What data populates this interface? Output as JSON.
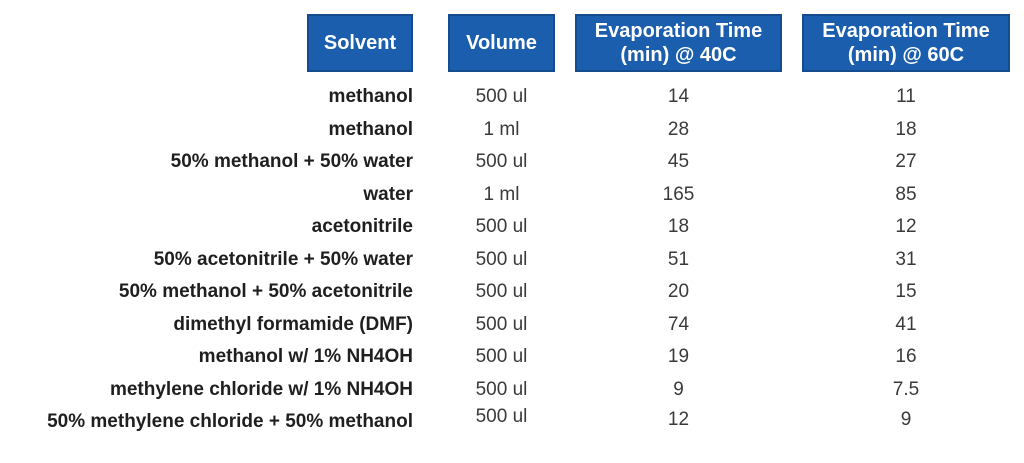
{
  "colors": {
    "header_bg": "#1A5EAD",
    "header_border": "#154C8D",
    "header_text": "#FFFFFF",
    "solvent_text": "#1F1F1F",
    "value_text": "#3A3A3A",
    "background": "#FFFFFF"
  },
  "table": {
    "headers": [
      {
        "id": "solvent",
        "label": "Solvent"
      },
      {
        "id": "volume",
        "label": "Volume"
      },
      {
        "id": "t40",
        "label": "Evaporation Time\n(min) @ 40C"
      },
      {
        "id": "t60",
        "label": "Evaporation Time\n(min) @ 60C"
      }
    ],
    "rows": [
      {
        "solvent": "methanol",
        "volume": "500 ul",
        "t40": "14",
        "t60": "11"
      },
      {
        "solvent": "methanol",
        "volume": "1 ml",
        "t40": "28",
        "t60": "18"
      },
      {
        "solvent": "50% methanol + 50% water",
        "volume": "500 ul",
        "t40": "45",
        "t60": "27"
      },
      {
        "solvent": "water",
        "volume": "1 ml",
        "t40": "165",
        "t60": "85"
      },
      {
        "solvent": "acetonitrile",
        "volume": "500 ul",
        "t40": "18",
        "t60": "12"
      },
      {
        "solvent": "50% acetonitrile + 50% water",
        "volume": "500 ul",
        "t40": "51",
        "t60": "31"
      },
      {
        "solvent": "50% methanol + 50% acetonitrile",
        "volume": "500 ul",
        "t40": "20",
        "t60": "15"
      },
      {
        "solvent": "dimethyl formamide (DMF)",
        "volume": "500 ul",
        "t40": "74",
        "t60": "41"
      },
      {
        "solvent": "methanol w/ 1% NH4OH",
        "volume": "500 ul",
        "t40": "19",
        "t60": "16"
      },
      {
        "solvent": "methylene chloride w/ 1% NH4OH",
        "volume": "500 ul",
        "t40": "9",
        "t60": "7.5"
      },
      {
        "solvent": "50% methylene chloride + 50% methanol",
        "volume": "500 ul",
        "t40": "12",
        "t60": "9"
      }
    ]
  },
  "chart_data": {
    "type": "table",
    "title": "",
    "columns": [
      "Solvent",
      "Volume",
      "Evaporation Time (min) @ 40C",
      "Evaporation Time (min) @ 60C"
    ],
    "rows": [
      [
        "methanol",
        "500 ul",
        14,
        11
      ],
      [
        "methanol",
        "1 ml",
        28,
        18
      ],
      [
        "50% methanol + 50% water",
        "500 ul",
        45,
        27
      ],
      [
        "water",
        "1 ml",
        165,
        85
      ],
      [
        "acetonitrile",
        "500 ul",
        18,
        12
      ],
      [
        "50% acetonitrile + 50% water",
        "500 ul",
        51,
        31
      ],
      [
        "50% methanol + 50% acetonitrile",
        "500 ul",
        20,
        15
      ],
      [
        "dimethyl formamide (DMF)",
        "500 ul",
        74,
        41
      ],
      [
        "methanol w/ 1% NH4OH",
        "500 ul",
        19,
        16
      ],
      [
        "methylene chloride w/ 1% NH4OH",
        "500 ul",
        9,
        7.5
      ],
      [
        "50% methylene chloride + 50% methanol",
        "500 ul",
        12,
        9
      ]
    ]
  }
}
